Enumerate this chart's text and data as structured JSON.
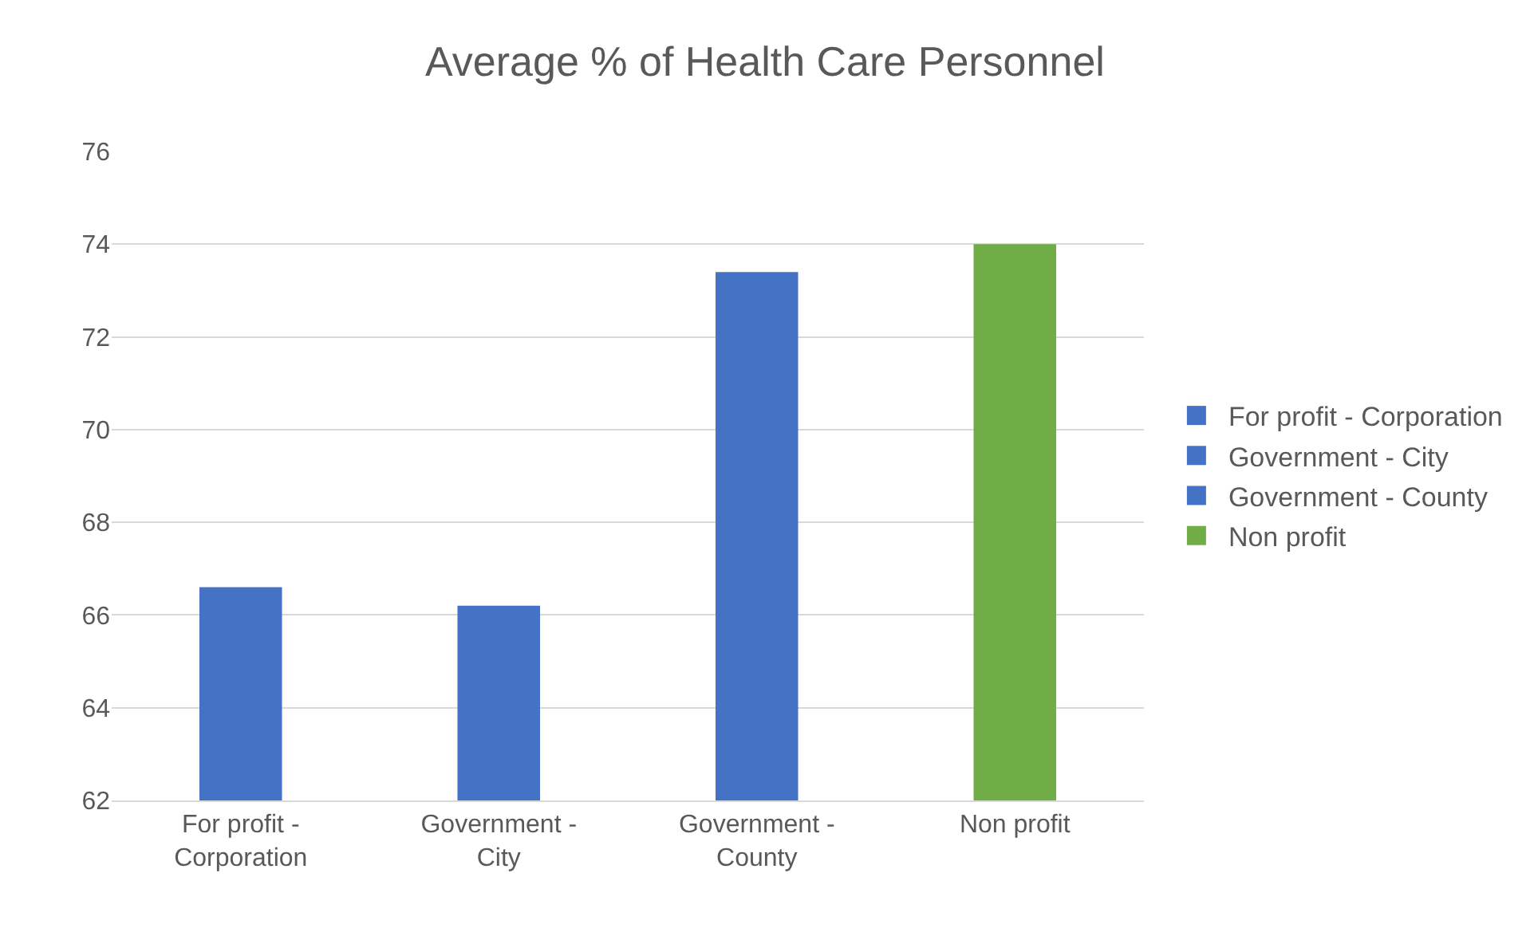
{
  "chart_data": {
    "type": "bar",
    "title": "Average % of Health Care Personnel",
    "categories": [
      "For profit - Corporation",
      "Government - City",
      "Government - County",
      "Non profit"
    ],
    "series": [
      {
        "name": "For profit - Corporation",
        "color": "#4472c4",
        "values": [
          66.6,
          null,
          null,
          null
        ]
      },
      {
        "name": "Government - City",
        "color": "#4472c4",
        "values": [
          null,
          66.2,
          null,
          null
        ]
      },
      {
        "name": "Government - County",
        "color": "#4472c4",
        "values": [
          null,
          null,
          73.4,
          null
        ]
      },
      {
        "name": "Non profit",
        "color": "#70ad47",
        "values": [
          null,
          null,
          null,
          74.0
        ]
      }
    ],
    "ylim": [
      62,
      76
    ],
    "yticks": [
      62,
      64,
      66,
      68,
      70,
      72,
      74,
      76
    ],
    "grid": "y",
    "legend": "right"
  }
}
